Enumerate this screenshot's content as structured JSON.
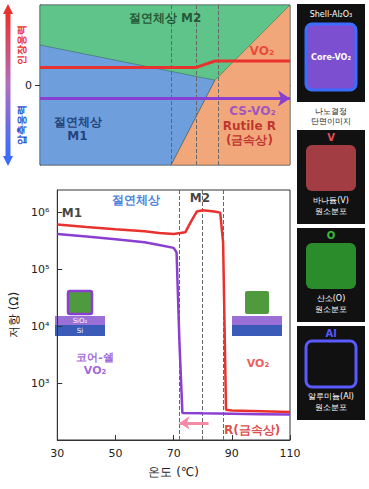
{
  "chart_data": [
    {
      "type": "phase_diagram",
      "xlim": [
        30,
        110
      ],
      "ylim": [
        -1,
        1
      ],
      "yticks": [
        0
      ],
      "tick_labels": "y",
      "grid": false,
      "y_labels": {
        "positive": "인장응력",
        "negative": "압축응력"
      },
      "regions": [
        {
          "name": "절연체상 M2",
          "color": "#5fc48a",
          "polygon": [
            [
              30,
              -1
            ],
            [
              30,
              1
            ],
            [
              110,
              1
            ],
            [
              110,
              -1
            ]
          ],
          "label_at": [
            70,
            0.84
          ]
        },
        {
          "name": [
            "절연체상",
            "M1"
          ],
          "color": "#6e9fdc",
          "polygon": [
            [
              30,
              -1
            ],
            [
              30,
              0.5
            ],
            [
              86,
              0.06
            ],
            [
              72,
              -1
            ]
          ],
          "label_at": [
            42,
            -0.55
          ]
        },
        {
          "name": [
            "Rutile R",
            "(금속상)"
          ],
          "color": "#f2a77a",
          "polygon": [
            [
              72,
              -1
            ],
            [
              86,
              0.06
            ],
            [
              110,
              1
            ],
            [
              110,
              -1
            ]
          ],
          "label_at": [
            97,
            -0.6
          ]
        }
      ],
      "series": [
        {
          "name": "VO₂",
          "color": "#e8322d",
          "x": [
            30,
            80,
            86,
            110
          ],
          "values": [
            0.22,
            0.22,
            0.3,
            0.3
          ],
          "label_at": [
            101,
            0.43
          ]
        },
        {
          "name": "CS-VO₂",
          "color": "#8a3fd1",
          "x": [
            30,
            110
          ],
          "values": [
            -0.17,
            -0.17
          ],
          "marker": "arrow",
          "label_at": [
            98,
            -0.32
          ]
        }
      ],
      "transition_temps": [
        72,
        80,
        87
      ]
    },
    {
      "type": "line",
      "xlabel": "온도 (℃)",
      "ylabel": "저항 (Ω)",
      "log": "y",
      "grid": false,
      "xlim": [
        30,
        110
      ],
      "xticks": [
        30,
        50,
        70,
        90,
        110
      ],
      "ylim": [
        100,
        2500000
      ],
      "yticks": [
        {
          "value": 1000,
          "label": "10³"
        },
        {
          "value": 10000,
          "label": "10⁴"
        },
        {
          "value": 100000,
          "label": "10⁵"
        },
        {
          "value": 1000000,
          "label": "10⁶"
        }
      ],
      "series": [
        {
          "name": "VO₂",
          "color": "#e8322d",
          "x": [
            30,
            40,
            50,
            60,
            65,
            70,
            74,
            76,
            78,
            80,
            84,
            86,
            87,
            88,
            90,
            100,
            110
          ],
          "values": [
            620000,
            560000,
            510000,
            470000,
            440000,
            420000,
            450000,
            700000,
            1050000,
            1100000,
            1050000,
            1000000,
            300000,
            340,
            330,
            320,
            310
          ],
          "label_at": [
            99,
            2200
          ]
        },
        {
          "name": "코어-쉘 VO₂",
          "color": "#8a3fd1",
          "x": [
            30,
            40,
            50,
            60,
            65,
            70,
            71,
            72,
            73,
            80,
            90,
            100,
            110
          ],
          "values": [
            420000,
            380000,
            340000,
            300000,
            270000,
            240000,
            200000,
            5000,
            300,
            295,
            290,
            285,
            280
          ],
          "label_at": [
            43,
            2200
          ]
        }
      ],
      "annotations": [
        {
          "text": "절연체상",
          "x": 57,
          "y": 1700000,
          "color": "#1a5fd6"
        },
        {
          "text": "M1",
          "x": 35,
          "y": 1000000,
          "color": "#111111"
        },
        {
          "text": "M2",
          "x": 79,
          "y": 1800000,
          "color": "#111111"
        },
        {
          "text": "R(금속상)",
          "x": 97,
          "y": 150,
          "color": "#d42020"
        }
      ],
      "hysteresis_arrow": {
        "x": [
          82,
          72
        ],
        "y": 200,
        "color": "#f48aa6"
      },
      "transition_temps": [
        72,
        80,
        87
      ],
      "inset_labels": [
        "SiO₂",
        "Si"
      ]
    }
  ],
  "images": [
    {
      "label": "Shell-Al₂O₃",
      "inner_label": "Core-VO₂",
      "caption": "나노결정 단면이미지"
    },
    {
      "label": "V",
      "caption": "바나듐(V) 원소분포",
      "color": "#e0505a"
    },
    {
      "label": "O",
      "caption": "산소(O) 원소분포",
      "color": "#35c035"
    },
    {
      "label": "Al",
      "caption": "알루미늄(Al) 원소분포",
      "color": "#5a5aff"
    }
  ]
}
